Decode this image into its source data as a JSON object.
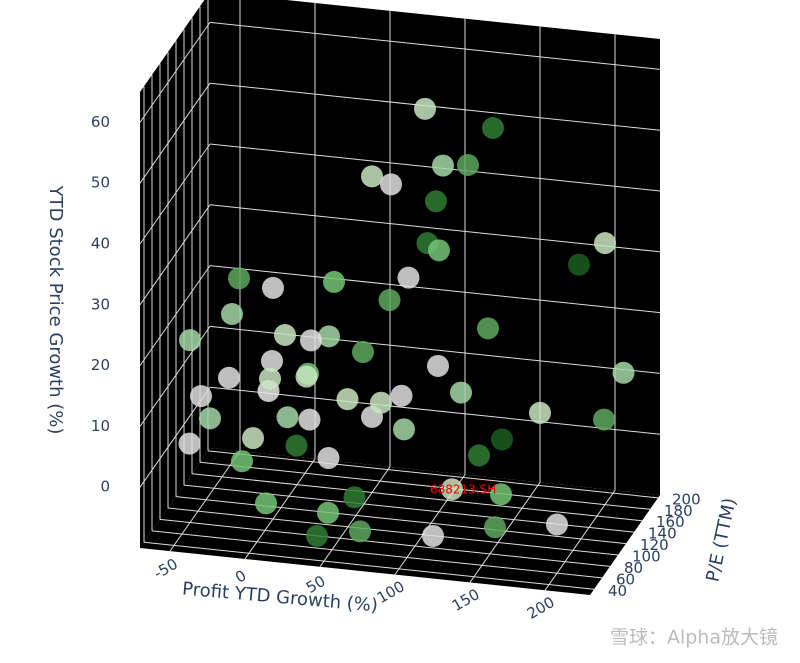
{
  "chart_data": {
    "type": "scatter3d",
    "xlabel": "Profit YTD Growth (%)",
    "ylabel": "P/E (TTM)",
    "zlabel": "YTD Stock Price Growth (%)",
    "xlim": [
      -70,
      230
    ],
    "xticks": [
      -50,
      0,
      50,
      100,
      150,
      200
    ],
    "ylim": [
      30,
      205
    ],
    "yticks": [
      40,
      60,
      80,
      100,
      120,
      140,
      160,
      180,
      200
    ],
    "zlim": [
      -10,
      65
    ],
    "zticks": [
      0,
      10,
      20,
      30,
      40,
      50,
      60
    ],
    "grid": true,
    "annotation": "688213.SH",
    "watermark": "雪球：Alpha放大镜",
    "x": [
      -45,
      -40,
      -30,
      -20,
      -10,
      0,
      5,
      10,
      15,
      20,
      25,
      30,
      35,
      40,
      45,
      50,
      55,
      60,
      65,
      70,
      75,
      80,
      85,
      90,
      95,
      100,
      110,
      120,
      130,
      140,
      150,
      160,
      170,
      200,
      210,
      215,
      200,
      180,
      50,
      60,
      80,
      100,
      90,
      110,
      120,
      -20,
      0,
      -30,
      20,
      30,
      -10,
      40,
      70,
      120,
      10,
      -50,
      130,
      160,
      95,
      25
    ],
    "y": [
      60,
      70,
      55,
      65,
      60,
      50,
      70,
      60,
      80,
      55,
      65,
      75,
      60,
      90,
      70,
      50,
      80,
      100,
      60,
      85,
      110,
      70,
      120,
      90,
      130,
      140,
      100,
      120,
      150,
      90,
      110,
      70,
      130,
      60,
      140,
      170,
      180,
      190,
      160,
      170,
      180,
      150,
      170,
      175,
      200,
      90,
      100,
      110,
      120,
      140,
      130,
      60,
      55,
      50,
      45,
      80,
      60,
      55,
      65,
      90
    ],
    "z": [
      5,
      12,
      10,
      16,
      3,
      8,
      14,
      20,
      9,
      25,
      6,
      17,
      11,
      22,
      4,
      -3,
      13,
      19,
      -1,
      10,
      27,
      14,
      30,
      8,
      35,
      33,
      18,
      12,
      20,
      5,
      6,
      1,
      9,
      -2,
      8,
      13,
      33,
      28,
      42,
      40,
      52,
      46,
      38,
      44,
      48,
      30,
      28,
      22,
      18,
      26,
      10,
      -8,
      -6,
      -5,
      -2,
      20,
      2,
      -3,
      16,
      15
    ],
    "colors": [
      "#e0e0e0",
      "#dddddd",
      "#a5d6a7",
      "#e0e0e0",
      "#74c476",
      "#c8e6c0",
      "#e8e8e8",
      "#e0e0e0",
      "#a5d6a7",
      "#c8e6c0",
      "#2e7d32",
      "#74c476",
      "#e0e0e0",
      "#a5d6a7",
      "#e0e0e0",
      "#74c476",
      "#c8e6c0",
      "#5ea85e",
      "#2e7d32",
      "#e0e0e0",
      "#5ea85e",
      "#c8e6c0",
      "#e0e0e0",
      "#a5d6a7",
      "#2e7d32",
      "#74c476",
      "#e0e0e0",
      "#a5d6a7",
      "#5ea85e",
      "#2e7d32",
      "#1b5e20",
      "#74c476",
      "#c8e6c0",
      "#e0e0e0",
      "#5ea85e",
      "#a5d6a7",
      "#c8e6c0",
      "#1b5e20",
      "#c8e6c0",
      "#e0e0e0",
      "#c8e6c0",
      "#a5d6a7",
      "#2e7d32",
      "#5ea85e",
      "#2e7d32",
      "#5ea85e",
      "#e0e0e0",
      "#a5d6a7",
      "#e0e0e0",
      "#74c476",
      "#c8e6c0",
      "#2e7d32",
      "#5ea85e",
      "#e0e0e0",
      "#74c476",
      "#a5d6a7",
      "#c8e6c0",
      "#5ea85e",
      "#e0e0e0",
      "#c8e6c0"
    ]
  }
}
